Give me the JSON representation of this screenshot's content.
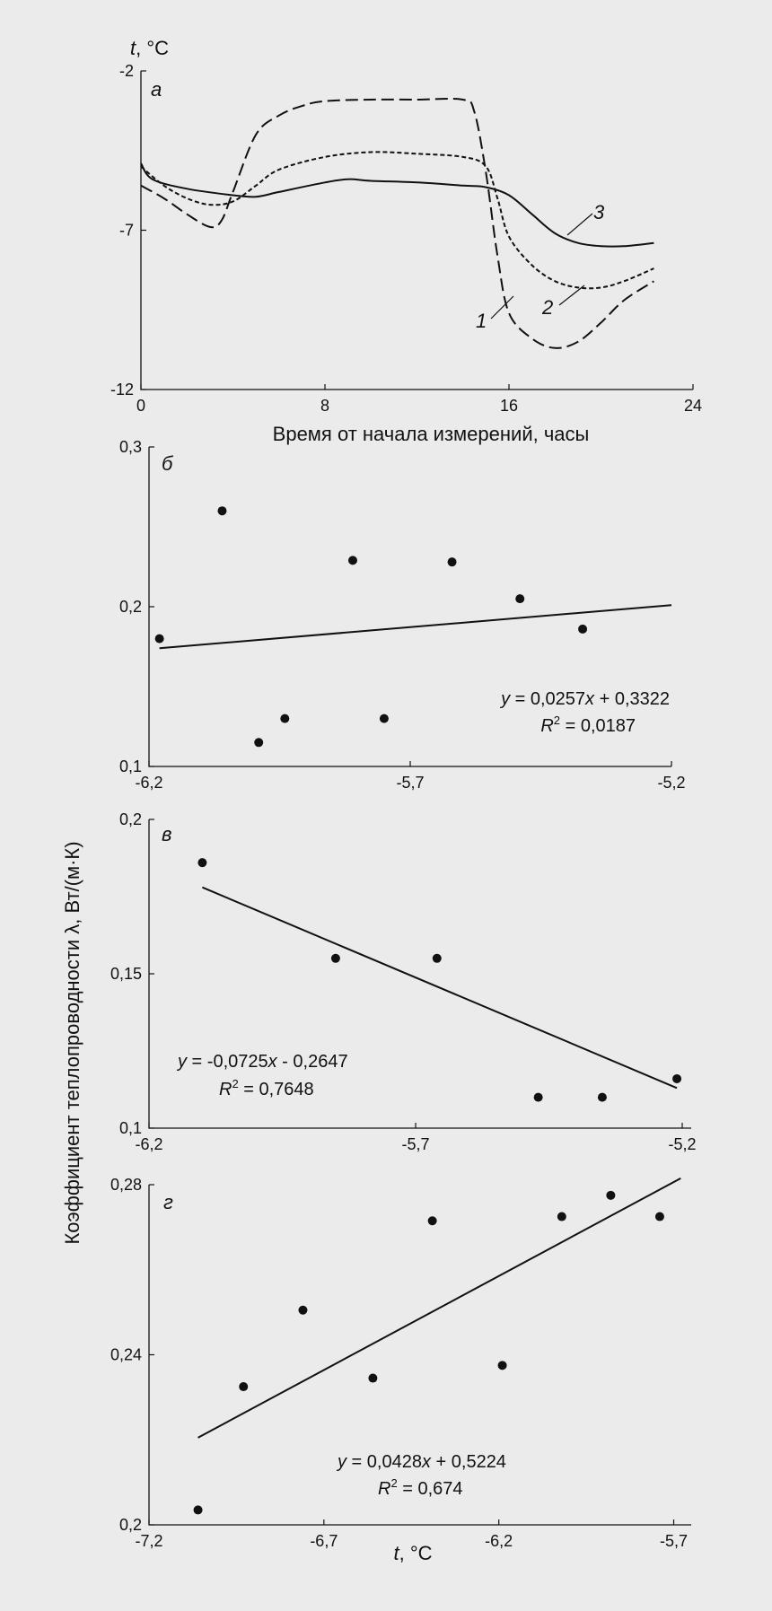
{
  "figure": {
    "ylabel_shared": "Коэффициент теплопроводности λ, Вт/(м·К)"
  },
  "chart_data": [
    {
      "type": "line",
      "panel": "а",
      "ylabel": "t, °C",
      "ylabel_var": "t",
      "ylabel_unit": ", °C",
      "xlabel": "Время от начала измерений, часы",
      "xlim": [
        0,
        24
      ],
      "ylim": [
        -12,
        -2
      ],
      "xticks": [
        0,
        8,
        16,
        24
      ],
      "xtick_labels": [
        "0",
        "8",
        "16",
        "24"
      ],
      "yticks": [
        -12,
        -7,
        -2
      ],
      "ytick_labels": [
        "-12",
        "-7",
        "-2"
      ],
      "series": [
        {
          "name": "1",
          "dash": "long",
          "x": [
            0,
            1,
            2,
            3,
            3.5,
            4,
            5,
            6,
            7,
            8,
            10,
            12,
            14,
            14.5,
            15,
            15.5,
            16,
            17,
            18,
            19,
            20,
            21,
            22.3
          ],
          "y": [
            -5.6,
            -6.0,
            -6.5,
            -6.9,
            -6.7,
            -5.8,
            -4.0,
            -3.4,
            -3.1,
            -2.95,
            -2.9,
            -2.9,
            -2.9,
            -3.3,
            -5.2,
            -7.8,
            -9.6,
            -10.4,
            -10.7,
            -10.5,
            -9.9,
            -9.2,
            -8.6
          ]
        },
        {
          "name": "2",
          "dash": "short",
          "x": [
            0,
            1,
            2,
            3,
            4,
            5,
            6,
            8,
            10,
            12,
            14,
            15,
            15.5,
            16,
            17,
            18,
            19,
            20,
            21,
            22.3
          ],
          "y": [
            -5.0,
            -5.6,
            -6.0,
            -6.2,
            -6.1,
            -5.6,
            -5.1,
            -4.7,
            -4.55,
            -4.6,
            -4.7,
            -5.0,
            -6.0,
            -7.2,
            -8.1,
            -8.6,
            -8.8,
            -8.8,
            -8.6,
            -8.2
          ]
        },
        {
          "name": "3",
          "dash": "solid",
          "x": [
            0,
            0.5,
            2,
            4,
            5,
            6,
            8,
            9,
            10,
            12,
            14,
            15,
            16,
            17,
            18,
            19,
            20,
            21,
            22.3
          ],
          "y": [
            -4.9,
            -5.4,
            -5.7,
            -5.9,
            -5.95,
            -5.8,
            -5.5,
            -5.4,
            -5.45,
            -5.5,
            -5.6,
            -5.65,
            -5.9,
            -6.5,
            -7.1,
            -7.4,
            -7.5,
            -7.5,
            -7.4
          ]
        }
      ],
      "curve_labels": [
        "1",
        "2",
        "3"
      ]
    },
    {
      "type": "scatter",
      "panel": "б",
      "xlim": [
        -6.2,
        -5.2
      ],
      "ylim": [
        0.1,
        0.3
      ],
      "xticks": [
        -6.2,
        -5.7,
        -5.2
      ],
      "xtick_labels": [
        "-6,2",
        "-5,7",
        "-5,2"
      ],
      "yticks": [
        0.1,
        0.2,
        0.3
      ],
      "ytick_labels": [
        "0,1",
        "0,2",
        "0,3"
      ],
      "points": {
        "x": [
          -6.18,
          -6.06,
          -5.99,
          -5.94,
          -5.81,
          -5.75,
          -5.62,
          -5.49,
          -5.37
        ],
        "y": [
          0.18,
          0.26,
          0.115,
          0.13,
          0.229,
          0.13,
          0.228,
          0.205,
          0.186
        ]
      },
      "trendline": {
        "x": [
          -6.18,
          -5.2
        ],
        "y": [
          0.174,
          0.201
        ]
      },
      "equation": "y = 0,0257x + 0,3322",
      "equation_parts": {
        "var": "y",
        "rhs1": " = 0,0257",
        "var2": "x",
        "rhs2": " + 0,3322"
      },
      "r2": "R² = 0,0187",
      "r2_parts": {
        "sym": "R",
        "sup": "2",
        "val": " = 0,0187"
      }
    },
    {
      "type": "scatter",
      "panel": "в",
      "xlim": [
        -6.2,
        -5.2
      ],
      "ylim": [
        0.1,
        0.2
      ],
      "xticks": [
        -6.2,
        -5.7,
        -5.2
      ],
      "xtick_labels": [
        "-6,2",
        "-5,7",
        "-5,2"
      ],
      "yticks": [
        0.1,
        0.15,
        0.2
      ],
      "ytick_labels": [
        "0,1",
        "0,15",
        "0,2"
      ],
      "points": {
        "x": [
          -6.1,
          -5.85,
          -5.66,
          -5.47,
          -5.35,
          -5.21
        ],
        "y": [
          0.186,
          0.155,
          0.155,
          0.11,
          0.11,
          0.116
        ]
      },
      "trendline": {
        "x": [
          -6.1,
          -5.21
        ],
        "y": [
          0.178,
          0.113
        ]
      },
      "equation": "y = -0,0725x - 0,2647",
      "equation_parts": {
        "var": "y",
        "rhs1": " = -0,0725",
        "var2": "x",
        "rhs2": " - 0,2647"
      },
      "r2": "R² = 0,7648",
      "r2_parts": {
        "sym": "R",
        "sup": "2",
        "val": " = 0,7648"
      }
    },
    {
      "type": "scatter",
      "panel": "г",
      "xlabel": "t, °C",
      "xlabel_var": "t",
      "xlabel_unit": ", °C",
      "xlim": [
        -7.2,
        -5.65
      ],
      "ylim": [
        0.2,
        0.28
      ],
      "xticks": [
        -7.2,
        -6.7,
        -6.2,
        -5.7
      ],
      "xtick_labels": [
        "-7,2",
        "-6,7",
        "-6,2",
        "-5,7"
      ],
      "yticks": [
        0.2,
        0.24,
        0.28
      ],
      "ytick_labels": [
        "0,2",
        "0,24",
        "0,28"
      ],
      "points": {
        "x": [
          -7.06,
          -6.93,
          -6.76,
          -6.56,
          -6.39,
          -6.19,
          -6.02,
          -5.88,
          -5.74
        ],
        "y": [
          0.2035,
          0.2325,
          0.2505,
          0.2345,
          0.2715,
          0.2375,
          0.2725,
          0.2775,
          0.2725
        ]
      },
      "trendline": {
        "x": [
          -7.06,
          -5.68
        ],
        "y": [
          0.2205,
          0.2815
        ]
      },
      "equation": "y = 0,0428x + 0,5224",
      "equation_parts": {
        "var": "y",
        "rhs1": " = 0,0428",
        "var2": "x",
        "rhs2": " + 0,5224"
      },
      "r2": "R² = 0,674",
      "r2_parts": {
        "sym": "R",
        "sup": "2",
        "val": " = 0,674"
      }
    }
  ]
}
